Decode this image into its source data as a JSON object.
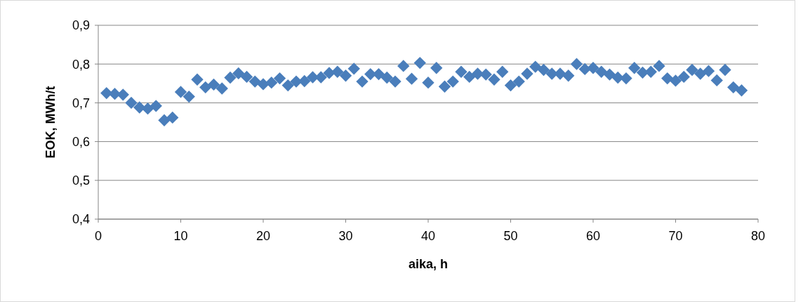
{
  "chart_data": {
    "type": "scatter",
    "xlabel": "aika, h",
    "ylabel": "EOK, MWh/t",
    "marker": "diamond",
    "grid": "y",
    "xlim": [
      0,
      80
    ],
    "xticks": [
      0,
      10,
      20,
      30,
      40,
      50,
      60,
      70,
      80
    ],
    "ylim": [
      0.4,
      0.9
    ],
    "yticks": [
      {
        "value": 0.4,
        "label": "0,4"
      },
      {
        "value": 0.5,
        "label": "0,5"
      },
      {
        "value": 0.6,
        "label": "0,6"
      },
      {
        "value": 0.7,
        "label": "0,7"
      },
      {
        "value": 0.8,
        "label": "0,8"
      },
      {
        "value": 0.9,
        "label": "0,9"
      }
    ],
    "series": [
      {
        "color": "#4a7ebb",
        "x": [
          1,
          2,
          3,
          4,
          5,
          6,
          7,
          8,
          9,
          10,
          11,
          12,
          13,
          14,
          15,
          16,
          17,
          18,
          19,
          20,
          21,
          22,
          23,
          24,
          25,
          26,
          27,
          28,
          29,
          30,
          31,
          32,
          33,
          34,
          35,
          36,
          37,
          38,
          39,
          40,
          41,
          42,
          43,
          44,
          45,
          46,
          47,
          48,
          49,
          50,
          51,
          52,
          53,
          54,
          55,
          56,
          57,
          58,
          59,
          60,
          61,
          62,
          63,
          64,
          65,
          66,
          67,
          68,
          69,
          70,
          71,
          72,
          73,
          74,
          75,
          76,
          77,
          78
        ],
        "values": [
          0.725,
          0.723,
          0.721,
          0.7,
          0.688,
          0.685,
          0.692,
          0.655,
          0.662,
          0.728,
          0.716,
          0.76,
          0.74,
          0.747,
          0.737,
          0.765,
          0.776,
          0.767,
          0.755,
          0.748,
          0.752,
          0.763,
          0.745,
          0.755,
          0.756,
          0.766,
          0.766,
          0.777,
          0.78,
          0.77,
          0.788,
          0.755,
          0.774,
          0.774,
          0.765,
          0.755,
          0.795,
          0.762,
          0.803,
          0.752,
          0.79,
          0.742,
          0.755,
          0.78,
          0.767,
          0.775,
          0.773,
          0.76,
          0.78,
          0.745,
          0.755,
          0.775,
          0.793,
          0.785,
          0.775,
          0.775,
          0.77,
          0.8,
          0.787,
          0.79,
          0.78,
          0.773,
          0.765,
          0.763,
          0.79,
          0.778,
          0.78,
          0.795,
          0.763,
          0.757,
          0.767,
          0.785,
          0.775,
          0.782,
          0.758,
          0.785,
          0.74,
          0.732
        ]
      }
    ]
  }
}
